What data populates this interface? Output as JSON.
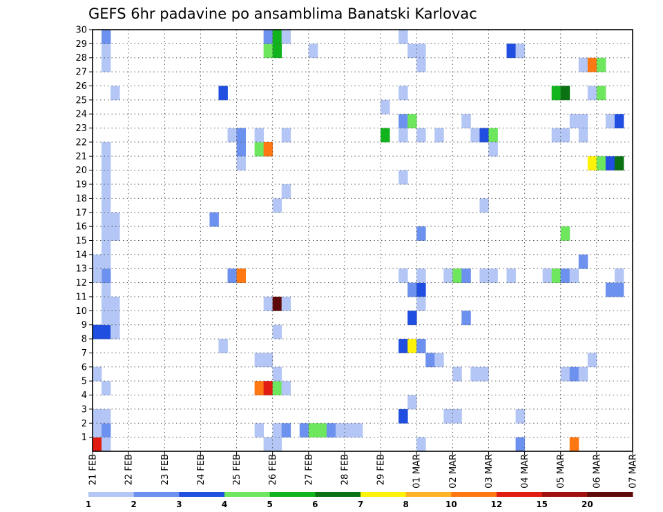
{
  "chart_data": {
    "type": "heatmap",
    "title": "GEFS 6hr padavine po ansamblima Banatski Karlovac",
    "xlabel": "",
    "ylabel": "",
    "x_tick_labels": [
      "21 FEB",
      "22 FEB",
      "23 FEB",
      "24 FEB",
      "25 FEB",
      "26 FEB",
      "27 FEB",
      "28 FEB",
      "29 FEB",
      "01 MAR",
      "02 MAR",
      "03 MAR",
      "04 MAR",
      "05 MAR",
      "06 MAR",
      "07 MAR"
    ],
    "x_range_days": [
      0,
      15
    ],
    "x_step_days": 0.25,
    "y_tick_labels": [
      "1",
      "2",
      "3",
      "4",
      "5",
      "6",
      "7",
      "8",
      "9",
      "10",
      "11",
      "12",
      "13",
      "14",
      "15",
      "16",
      "17",
      "18",
      "19",
      "20",
      "21",
      "22",
      "23",
      "24",
      "25",
      "26",
      "27",
      "28",
      "29",
      "30"
    ],
    "y_range": [
      0,
      30
    ],
    "grid": true,
    "colorbar": {
      "labels": [
        "1",
        "2",
        "3",
        "4",
        "5",
        "6",
        "7",
        "8",
        "10",
        "12",
        "15",
        "20"
      ],
      "colors": [
        "#b4c6f5",
        "#6d91ee",
        "#1f4ee0",
        "#6ee65e",
        "#12b41e",
        "#0a7212",
        "#fff20a",
        "#ffb428",
        "#ff7812",
        "#e11c12",
        "#a01210",
        "#5f0a0a"
      ]
    },
    "cells": [
      [
        0.0,
        0,
        "#e11c12"
      ],
      [
        0.0,
        1,
        "#b4c6f5"
      ],
      [
        0.25,
        1,
        "#6d91ee"
      ],
      [
        0.25,
        0,
        "#b4c6f5"
      ],
      [
        0.0,
        2,
        "#b4c6f5"
      ],
      [
        0.25,
        2,
        "#b4c6f5"
      ],
      [
        0.0,
        5,
        "#b4c6f5"
      ],
      [
        0.25,
        4,
        "#b4c6f5"
      ],
      [
        0.0,
        8,
        "#1f4ee0"
      ],
      [
        0.25,
        8,
        "#1f4ee0"
      ],
      [
        0.25,
        9,
        "#b4c6f5"
      ],
      [
        0.5,
        8,
        "#b4c6f5"
      ],
      [
        0.25,
        10,
        "#b4c6f5"
      ],
      [
        0.5,
        9,
        "#b4c6f5"
      ],
      [
        0.5,
        10,
        "#b4c6f5"
      ],
      [
        0.25,
        11,
        "#b4c6f5"
      ],
      [
        0.25,
        12,
        "#6d91ee"
      ],
      [
        0.0,
        12,
        "#b4c6f5"
      ],
      [
        0.0,
        13,
        "#b4c6f5"
      ],
      [
        0.25,
        13,
        "#b4c6f5"
      ],
      [
        0.25,
        14,
        "#b4c6f5"
      ],
      [
        0.25,
        15,
        "#b4c6f5"
      ],
      [
        0.25,
        16,
        "#b4c6f5"
      ],
      [
        0.5,
        16,
        "#b4c6f5"
      ],
      [
        0.5,
        15,
        "#b4c6f5"
      ],
      [
        0.25,
        17,
        "#b4c6f5"
      ],
      [
        0.25,
        18,
        "#b4c6f5"
      ],
      [
        0.25,
        19,
        "#b4c6f5"
      ],
      [
        0.25,
        20,
        "#b4c6f5"
      ],
      [
        0.25,
        21,
        "#b4c6f5"
      ],
      [
        0.5,
        25,
        "#b4c6f5"
      ],
      [
        0.25,
        27,
        "#b4c6f5"
      ],
      [
        0.25,
        28,
        "#b4c6f5"
      ],
      [
        0.25,
        29,
        "#6d91ee"
      ],
      [
        3.25,
        16,
        "#6d91ee"
      ],
      [
        3.5,
        25,
        "#1f4ee0"
      ],
      [
        3.5,
        7,
        "#b4c6f5"
      ],
      [
        3.75,
        12,
        "#6d91ee"
      ],
      [
        4.0,
        12,
        "#ff7812"
      ],
      [
        3.75,
        22,
        "#b4c6f5"
      ],
      [
        4.0,
        22,
        "#6d91ee"
      ],
      [
        4.0,
        21,
        "#6d91ee"
      ],
      [
        4.0,
        20,
        "#b4c6f5"
      ],
      [
        4.5,
        21,
        "#6ee65e"
      ],
      [
        4.75,
        21,
        "#ff7812"
      ],
      [
        4.5,
        22,
        "#b4c6f5"
      ],
      [
        4.5,
        4,
        "#ff7812"
      ],
      [
        4.75,
        4,
        "#e11c12"
      ],
      [
        5.0,
        4,
        "#6ee65e"
      ],
      [
        5.25,
        4,
        "#b4c6f5"
      ],
      [
        5.0,
        5,
        "#b4c6f5"
      ],
      [
        4.5,
        6,
        "#b4c6f5"
      ],
      [
        4.75,
        6,
        "#b4c6f5"
      ],
      [
        4.5,
        1,
        "#b4c6f5"
      ],
      [
        5.0,
        1,
        "#b4c6f5"
      ],
      [
        5.25,
        1,
        "#6d91ee"
      ],
      [
        4.75,
        10,
        "#b4c6f5"
      ],
      [
        5.0,
        10,
        "#5f0a0a"
      ],
      [
        5.25,
        10,
        "#b4c6f5"
      ],
      [
        5.0,
        8,
        "#b4c6f5"
      ],
      [
        5.0,
        17,
        "#b4c6f5"
      ],
      [
        5.25,
        18,
        "#b4c6f5"
      ],
      [
        5.25,
        22,
        "#b4c6f5"
      ],
      [
        4.75,
        28,
        "#6ee65e"
      ],
      [
        5.0,
        28,
        "#12b41e"
      ],
      [
        4.75,
        29,
        "#6d91ee"
      ],
      [
        5.0,
        29,
        "#12b41e"
      ],
      [
        5.25,
        29,
        "#b4c6f5"
      ],
      [
        4.75,
        0,
        "#b4c6f5"
      ],
      [
        5.0,
        0,
        "#b4c6f5"
      ],
      [
        6.0,
        28,
        "#b4c6f5"
      ],
      [
        5.75,
        1,
        "#6d91ee"
      ],
      [
        6.0,
        1,
        "#6ee65e"
      ],
      [
        6.25,
        1,
        "#6ee65e"
      ],
      [
        6.5,
        1,
        "#6d91ee"
      ],
      [
        6.75,
        1,
        "#b4c6f5"
      ],
      [
        7.0,
        1,
        "#b4c6f5"
      ],
      [
        7.25,
        1,
        "#b4c6f5"
      ],
      [
        8.0,
        24,
        "#b4c6f5"
      ],
      [
        8.0,
        22,
        "#12b41e"
      ],
      [
        8.5,
        25,
        "#b4c6f5"
      ],
      [
        8.5,
        23,
        "#6d91ee"
      ],
      [
        8.75,
        23,
        "#6ee65e"
      ],
      [
        8.5,
        22,
        "#b4c6f5"
      ],
      [
        8.5,
        19,
        "#b4c6f5"
      ],
      [
        8.5,
        12,
        "#b4c6f5"
      ],
      [
        8.5,
        7,
        "#1f4ee0"
      ],
      [
        8.75,
        7,
        "#fff20a"
      ],
      [
        9.0,
        7,
        "#6d91ee"
      ],
      [
        8.5,
        2,
        "#1f4ee0"
      ],
      [
        8.75,
        9,
        "#1f4ee0"
      ],
      [
        8.75,
        11,
        "#6d91ee"
      ],
      [
        9.0,
        11,
        "#1f4ee0"
      ],
      [
        9.0,
        10,
        "#b4c6f5"
      ],
      [
        9.0,
        12,
        "#b4c6f5"
      ],
      [
        8.75,
        28,
        "#b4c6f5"
      ],
      [
        9.0,
        28,
        "#b4c6f5"
      ],
      [
        9.0,
        27,
        "#b4c6f5"
      ],
      [
        8.75,
        3,
        "#b4c6f5"
      ],
      [
        9.0,
        22,
        "#b4c6f5"
      ],
      [
        9.0,
        15,
        "#6d91ee"
      ],
      [
        9.25,
        6,
        "#6d91ee"
      ],
      [
        9.5,
        6,
        "#b4c6f5"
      ],
      [
        8.5,
        29,
        "#b4c6f5"
      ],
      [
        9.0,
        0,
        "#b4c6f5"
      ],
      [
        9.5,
        22,
        "#b4c6f5"
      ],
      [
        9.75,
        12,
        "#b4c6f5"
      ],
      [
        10.0,
        12,
        "#6ee65e"
      ],
      [
        10.25,
        12,
        "#6d91ee"
      ],
      [
        10.0,
        5,
        "#b4c6f5"
      ],
      [
        10.25,
        9,
        "#6d91ee"
      ],
      [
        9.75,
        2,
        "#b4c6f5"
      ],
      [
        10.0,
        2,
        "#b4c6f5"
      ],
      [
        10.25,
        23,
        "#b4c6f5"
      ],
      [
        10.5,
        22,
        "#b4c6f5"
      ],
      [
        10.75,
        22,
        "#1f4ee0"
      ],
      [
        11.0,
        22,
        "#6ee65e"
      ],
      [
        10.5,
        5,
        "#b4c6f5"
      ],
      [
        10.75,
        5,
        "#b4c6f5"
      ],
      [
        10.75,
        12,
        "#b4c6f5"
      ],
      [
        11.0,
        12,
        "#b4c6f5"
      ],
      [
        10.75,
        17,
        "#b4c6f5"
      ],
      [
        11.0,
        21,
        "#b4c6f5"
      ],
      [
        11.5,
        28,
        "#1f4ee0"
      ],
      [
        11.75,
        28,
        "#b4c6f5"
      ],
      [
        11.5,
        12,
        "#b4c6f5"
      ],
      [
        11.75,
        2,
        "#b4c6f5"
      ],
      [
        11.75,
        0,
        "#6d91ee"
      ],
      [
        12.5,
        12,
        "#b4c6f5"
      ],
      [
        12.75,
        12,
        "#6ee65e"
      ],
      [
        12.75,
        22,
        "#b4c6f5"
      ],
      [
        13.0,
        22,
        "#b4c6f5"
      ],
      [
        12.75,
        25,
        "#12b41e"
      ],
      [
        13.0,
        25,
        "#0a7212"
      ],
      [
        13.0,
        5,
        "#b4c6f5"
      ],
      [
        13.25,
        5,
        "#6d91ee"
      ],
      [
        13.5,
        5,
        "#b4c6f5"
      ],
      [
        13.0,
        12,
        "#6d91ee"
      ],
      [
        13.25,
        12,
        "#b4c6f5"
      ],
      [
        13.0,
        15,
        "#6ee65e"
      ],
      [
        13.25,
        0,
        "#ff7812"
      ],
      [
        13.5,
        13,
        "#6d91ee"
      ],
      [
        13.25,
        23,
        "#b4c6f5"
      ],
      [
        13.5,
        23,
        "#b4c6f5"
      ],
      [
        13.5,
        22,
        "#b4c6f5"
      ],
      [
        13.5,
        27,
        "#b4c6f5"
      ],
      [
        13.75,
        27,
        "#ff7812"
      ],
      [
        14.0,
        27,
        "#6ee65e"
      ],
      [
        13.75,
        25,
        "#b4c6f5"
      ],
      [
        14.0,
        25,
        "#6ee65e"
      ],
      [
        13.75,
        20,
        "#fff20a"
      ],
      [
        14.0,
        20,
        "#6ee65e"
      ],
      [
        14.25,
        20,
        "#1f4ee0"
      ],
      [
        14.5,
        20,
        "#0a7212"
      ],
      [
        14.25,
        23,
        "#b4c6f5"
      ],
      [
        14.5,
        23,
        "#1f4ee0"
      ],
      [
        13.75,
        6,
        "#b4c6f5"
      ],
      [
        14.5,
        11,
        "#6d91ee"
      ],
      [
        14.25,
        11,
        "#6d91ee"
      ],
      [
        14.5,
        12,
        "#b4c6f5"
      ]
    ]
  }
}
